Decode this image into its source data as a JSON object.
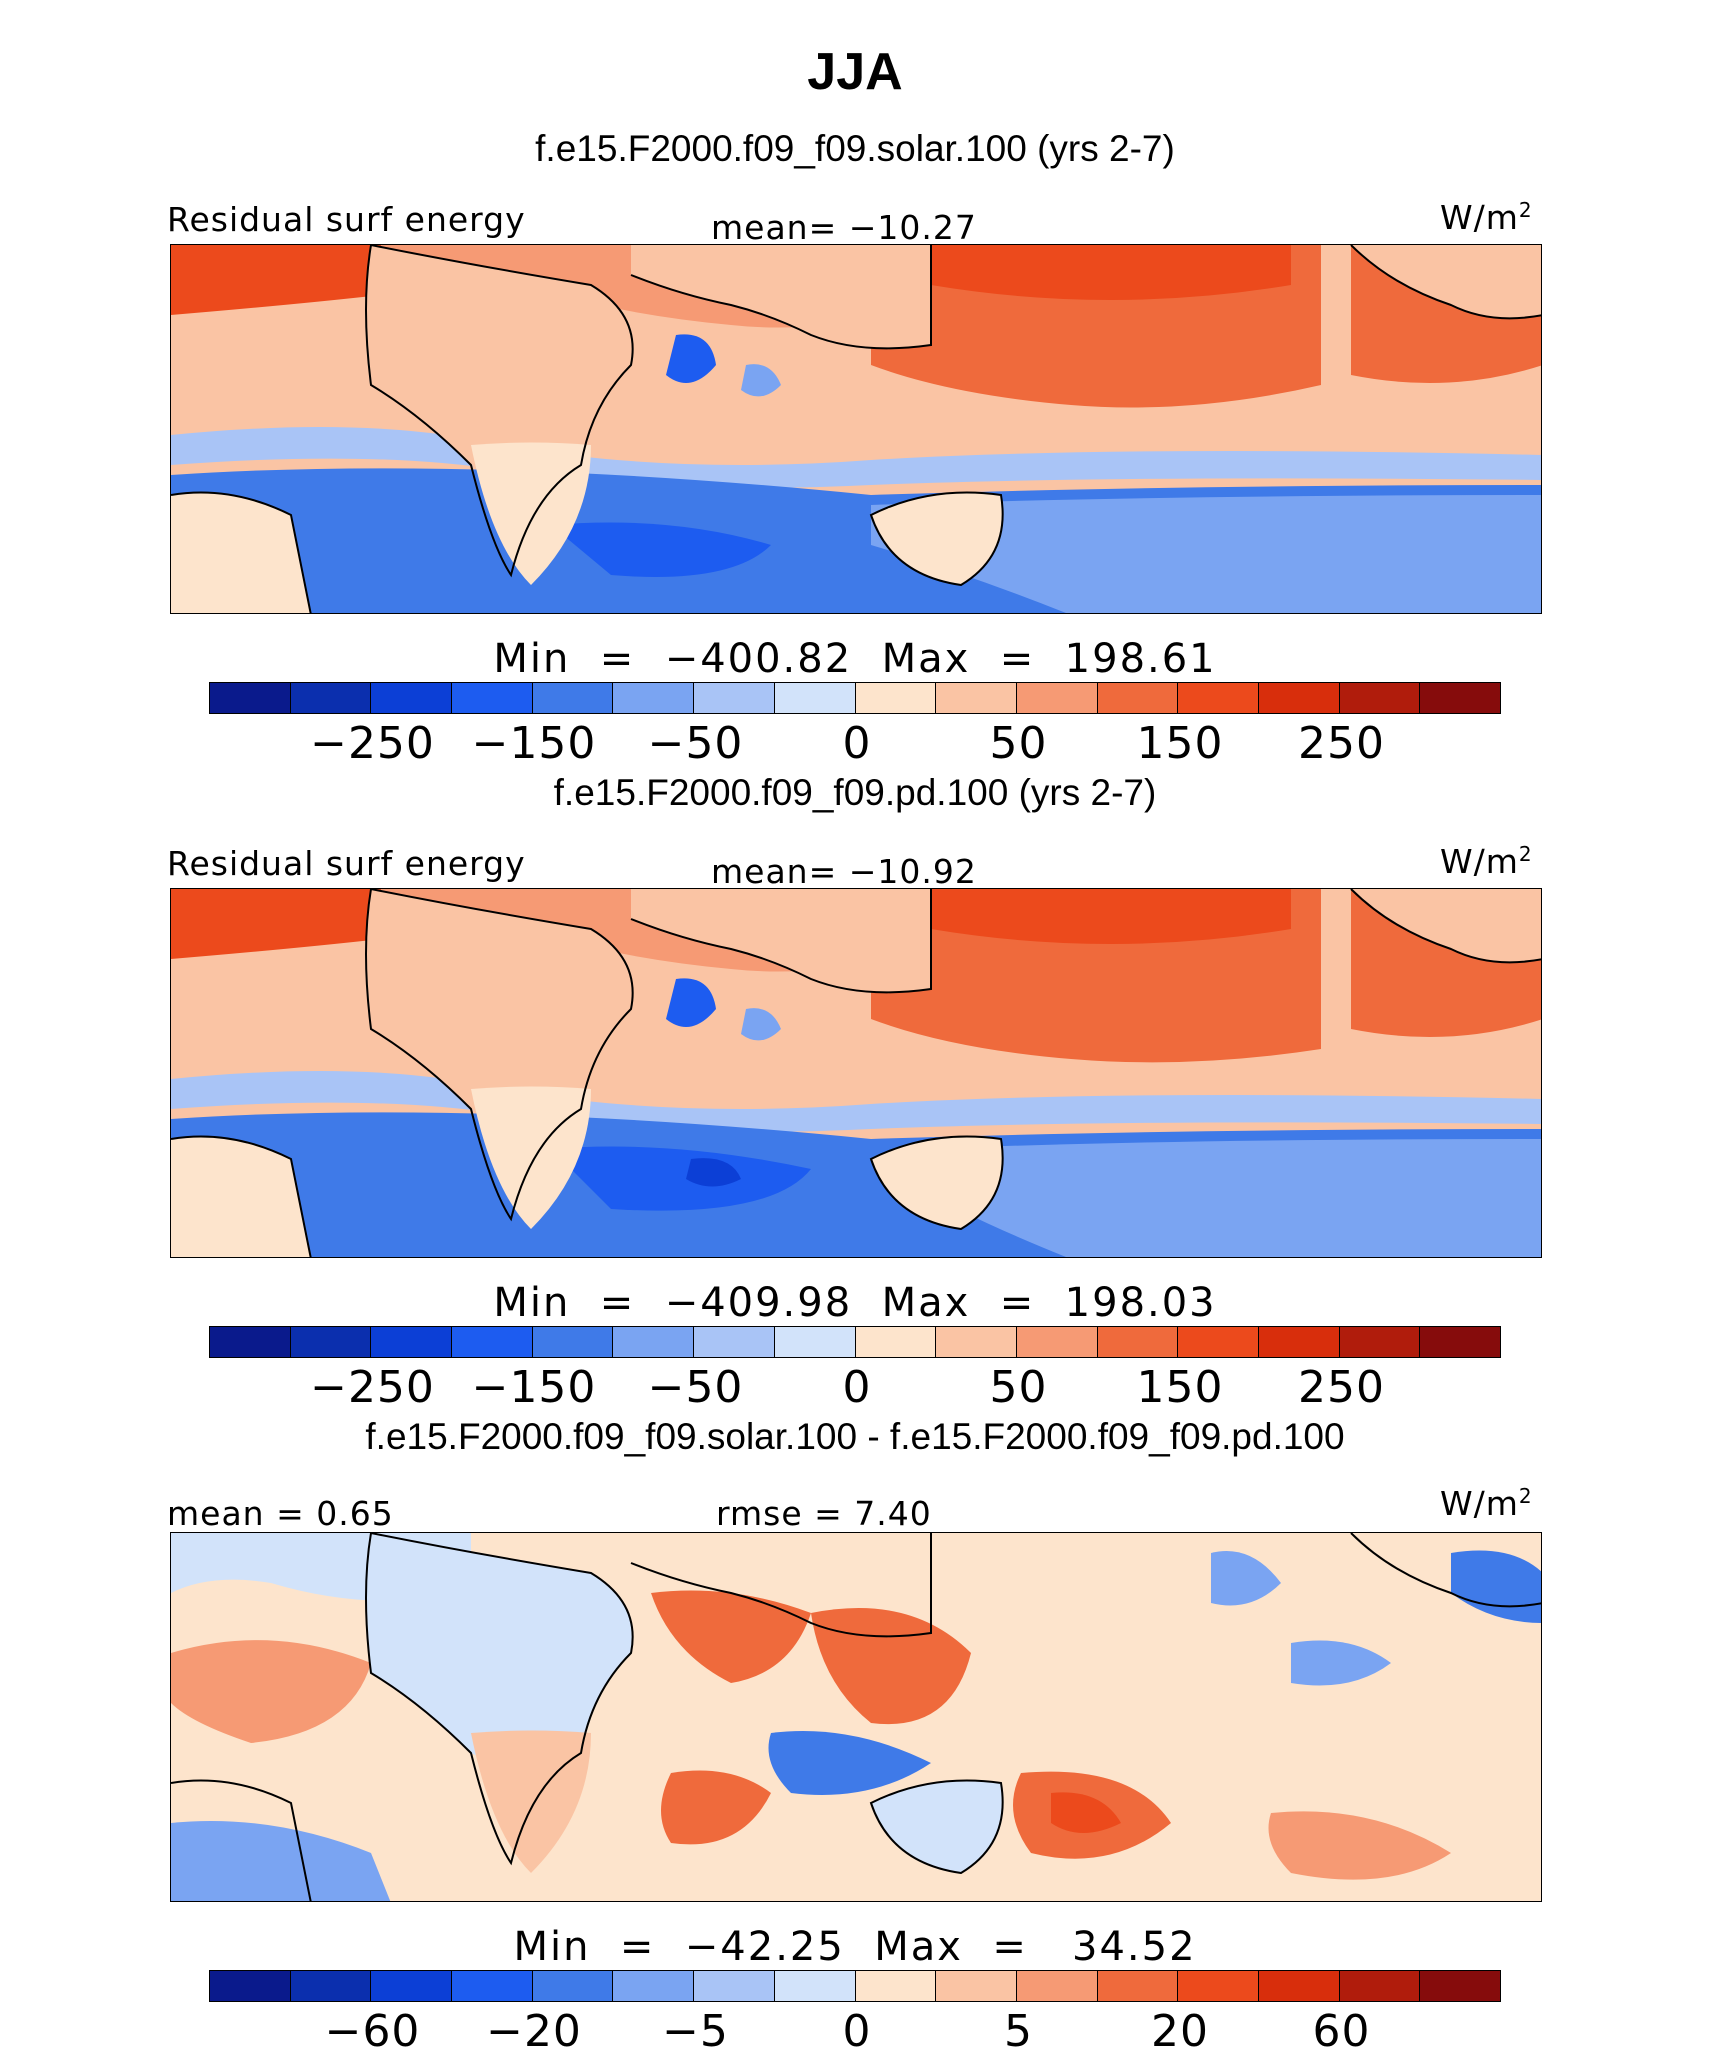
{
  "title": "JJA",
  "colors": [
    "#0a1a8c",
    "#0b2fae",
    "#0c3fd6",
    "#1d5cf0",
    "#3f7ae8",
    "#7aa4f2",
    "#a9c4f6",
    "#d2e3fa",
    "#fde4cc",
    "#fac4a4",
    "#f69a74",
    "#ef6a3c",
    "#ec4a1c",
    "#d82e0c",
    "#b01c0c",
    "#860c0c"
  ],
  "panels": [
    {
      "title": "f.e15.F2000.f09_f09.solar.100 (yrs 2-7)",
      "left_label": "Residual surf energy",
      "center_label": "mean= −10.27",
      "units": "W/m",
      "units_sup": "2",
      "minmax": "Min  =  −400.82  Max  =  198.61",
      "ticks": [
        "−250",
        "−150",
        "−50",
        "0",
        "50",
        "150",
        "250"
      ]
    },
    {
      "title": "f.e15.F2000.f09_f09.pd.100 (yrs 2-7)",
      "left_label": "Residual surf energy",
      "center_label": "mean= −10.92",
      "units": "W/m",
      "units_sup": "2",
      "minmax": "Min  =  −409.98  Max  =  198.03",
      "ticks": [
        "−250",
        "−150",
        "−50",
        "0",
        "50",
        "150",
        "250"
      ]
    },
    {
      "title": "f.e15.F2000.f09_f09.solar.100 - f.e15.F2000.f09_f09.pd.100",
      "left_label": "mean =    0.65",
      "center_label": "rmse =    7.40",
      "units": "W/m",
      "units_sup": "2",
      "minmax": "Min  =  −42.25  Max  =   34.52",
      "ticks": [
        "−60",
        "−20",
        "−5",
        "0",
        "5",
        "20",
        "60"
      ]
    }
  ]
}
